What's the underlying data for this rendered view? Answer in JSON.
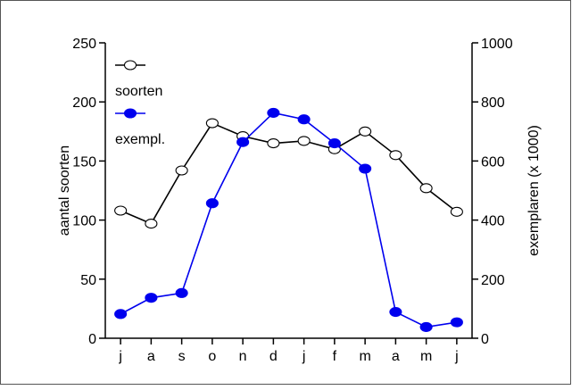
{
  "chart_data": {
    "type": "line",
    "categories": [
      "j",
      "a",
      "s",
      "o",
      "n",
      "d",
      "j",
      "f",
      "m",
      "a",
      "m",
      "j"
    ],
    "series": [
      {
        "name": "soorten",
        "axis": "left",
        "color": "#000000",
        "marker": "open-circle",
        "values": [
          108,
          97,
          142,
          182,
          171,
          165,
          167,
          160,
          175,
          155,
          127,
          107
        ]
      },
      {
        "name": "exempl.",
        "axis": "right",
        "color": "#0000ee",
        "marker": "filled-circle",
        "values": [
          82,
          137,
          153,
          457,
          664,
          763,
          741,
          660,
          574,
          89,
          38,
          54
        ]
      }
    ],
    "ylabel_left": "aantal soorten",
    "ylabel_right": "exemplaren (x 1000)",
    "ylim_left": [
      0,
      250
    ],
    "ylim_right": [
      0,
      1000
    ],
    "yticks_left": [
      "0",
      "50",
      "100",
      "150",
      "200",
      "250"
    ],
    "yticks_right": [
      "0",
      "200",
      "400",
      "600",
      "800",
      "1000"
    ],
    "legend_position": "top-left",
    "grid": false
  }
}
